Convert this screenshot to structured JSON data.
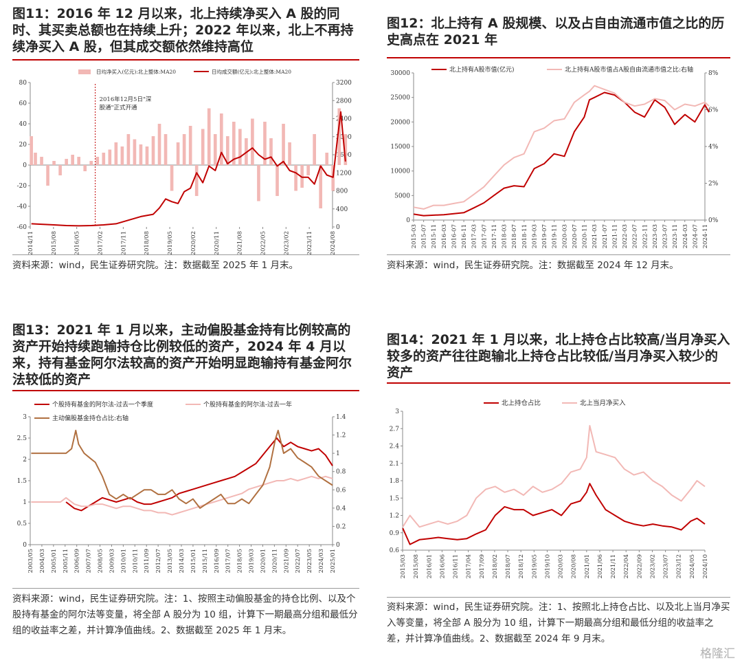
{
  "figures": [
    {
      "title": "图11：2016 年 12 月以来，北上持续净买入 A 股的同时、其买卖总额也在持续上升；2022 年以来，北上不再持续净买入 A 股，但其成交额依然维持高位",
      "source": "资料来源：wind，民生证券研究院。注：数据截至 2025 年 1 月末。"
    },
    {
      "title": "图12：北上持有 A 股规模、以及占自由流通市值之比的历史高点在 2021 年",
      "source": "资料来源：wind，民生证券研究院。注：数据截至 2024 年 12 月末。"
    },
    {
      "title": "图13：2021 年 1 月以来，主动偏股基金持有比例较高的资产开始持续跑输持仓比例较低的资产，2024 年 4 月以来，持有基金阿尔法较高的资产开始明显跑输持有基金阿尔法较低的资产",
      "source": "资料来源：wind，民生证券研究院。注：1、按照主动偏股基金的持仓比例、以及个股持有基金的阿尔法等变量，将全部 A 股分为 10 组，计算下一期最高分组和最低分组的收益率之差，并计算净值曲线。2、数据截至 2025 年 1 月末。"
    },
    {
      "title": "图14：2021 年 1 月以来，北上持仓占比较高/当月净买入较多的资产往往跑输北上持仓占比较低/当月净买入较少的资产",
      "source": "资料来源：wind，民生证券研究院。注：1、按照北上持仓占比、以及北上当月净买入等变量，将全部 A 股分为 10 组，计算下一期最高分组和最低分组的收益率之差，并计算净值曲线。2、数据截至 2024 年 9 月末。"
    }
  ],
  "watermark": "格隆汇",
  "chart_data": [
    {
      "type": "bar+line",
      "legend": [
        "日均净买入(亿元):北上整体:MA20",
        "日均成交额(亿元):北上整体:MA20"
      ],
      "annotation": "2016年12月5日\"深股通\"正式开通",
      "x_ticks": [
        "2014/11",
        "2015/08",
        "2016/05",
        "2017/02",
        "2017/11",
        "2018/08",
        "2019/05",
        "2020/02",
        "2020/11",
        "2021/08",
        "2022/05",
        "2023/02",
        "2023/11",
        "2024/08"
      ],
      "y_left": [
        80,
        60,
        40,
        20,
        0,
        -20,
        -40,
        -60
      ],
      "y_right": [
        3200,
        2800,
        2400,
        2000,
        1600,
        1200,
        800,
        400,
        0
      ],
      "ylim_left": [
        -60,
        80
      ],
      "ylim_right": [
        0,
        3200
      ],
      "series": [
        {
          "name": "日均净买入(亿元):北上整体:MA20",
          "axis": "left",
          "color": "#f2b8b5",
          "x": [
            2014.87,
            2015.0,
            2015.2,
            2015.4,
            2015.6,
            2015.8,
            2016.0,
            2016.2,
            2016.4,
            2016.6,
            2016.8,
            2017.0,
            2017.2,
            2017.4,
            2017.6,
            2017.8,
            2018.0,
            2018.2,
            2018.4,
            2018.6,
            2018.8,
            2019.0,
            2019.2,
            2019.4,
            2019.6,
            2019.8,
            2020.0,
            2020.2,
            2020.4,
            2020.6,
            2020.8,
            2021.0,
            2021.2,
            2021.4,
            2021.6,
            2021.8,
            2022.0,
            2022.2,
            2022.4,
            2022.6,
            2022.8,
            2023.0,
            2023.2,
            2023.4,
            2023.6,
            2023.8,
            2024.0,
            2024.2,
            2024.4,
            2024.6,
            2024.8,
            2025.0
          ],
          "y": [
            28,
            12,
            8,
            -20,
            4,
            -10,
            6,
            10,
            8,
            -6,
            4,
            8,
            12,
            15,
            22,
            18,
            30,
            25,
            20,
            18,
            28,
            40,
            30,
            -25,
            22,
            30,
            38,
            -30,
            35,
            55,
            30,
            50,
            28,
            42,
            35,
            26,
            45,
            -35,
            42,
            26,
            -30,
            40,
            22,
            -25,
            -22,
            -10,
            30,
            -42,
            12,
            -25,
            55,
            30
          ]
        },
        {
          "name": "日均成交额(亿元):北上整体:MA20",
          "axis": "right",
          "color": "#c00000",
          "x": [
            2014.87,
            2015.2,
            2015.6,
            2016.0,
            2016.4,
            2016.8,
            2017.2,
            2017.6,
            2018.0,
            2018.4,
            2018.8,
            2019.0,
            2019.2,
            2019.4,
            2019.6,
            2019.8,
            2020.0,
            2020.2,
            2020.4,
            2020.6,
            2020.8,
            2021.0,
            2021.2,
            2021.4,
            2021.6,
            2021.8,
            2022.0,
            2022.2,
            2022.4,
            2022.6,
            2022.8,
            2023.0,
            2023.2,
            2023.4,
            2023.6,
            2023.8,
            2024.0,
            2024.2,
            2024.4,
            2024.6,
            2024.75,
            2024.85,
            2025.0
          ],
          "y": [
            70,
            60,
            45,
            30,
            25,
            30,
            45,
            70,
            150,
            230,
            280,
            420,
            620,
            560,
            520,
            780,
            860,
            1200,
            980,
            1350,
            1250,
            1650,
            1400,
            1500,
            1550,
            1650,
            1750,
            1600,
            1500,
            1550,
            1350,
            1450,
            1250,
            1200,
            1100,
            1100,
            950,
            1350,
            1150,
            1100,
            2000,
            2550,
            1450
          ]
        }
      ]
    },
    {
      "type": "line",
      "legend": [
        "北上持有A股市值(亿元)",
        "北上持有A股市值占A股自由流通市值之比:右轴"
      ],
      "x_ticks": [
        "2015-03",
        "2015-07",
        "2015-11",
        "2016-03",
        "2016-07",
        "2016-11",
        "2017-03",
        "2017-07",
        "2017-11",
        "2018-03",
        "2018-07",
        "2018-11",
        "2019-03",
        "2019-07",
        "2019-11",
        "2020-03",
        "2020-07",
        "2020-11",
        "2021-03",
        "2021-07",
        "2021-11",
        "2022-03",
        "2022-07",
        "2022-11",
        "2023-03",
        "2023-07",
        "2023-11",
        "2024-03",
        "2024-07",
        "2024-11"
      ],
      "y_left": [
        30000,
        25000,
        20000,
        15000,
        10000,
        5000,
        0
      ],
      "y_right": [
        "8%",
        "6%",
        "4%",
        "2%",
        "0%"
      ],
      "ylim_left": [
        0,
        30000
      ],
      "ylim_right": [
        0,
        8
      ],
      "series": [
        {
          "name": "北上持有A股市值(亿元)",
          "axis": "left",
          "color": "#c00000",
          "x": [
            2015.17,
            2015.5,
            2015.83,
            2016.17,
            2016.5,
            2016.83,
            2017.17,
            2017.5,
            2017.83,
            2018.17,
            2018.5,
            2018.83,
            2019.17,
            2019.5,
            2019.83,
            2020.17,
            2020.5,
            2020.83,
            2021.0,
            2021.17,
            2021.5,
            2021.83,
            2022.17,
            2022.5,
            2022.83,
            2023.17,
            2023.5,
            2023.83,
            2024.17,
            2024.5,
            2024.83,
            2024.97
          ],
          "y": [
            1200,
            900,
            1000,
            1100,
            1300,
            1500,
            2500,
            3500,
            5000,
            6500,
            7000,
            6800,
            10500,
            11500,
            13500,
            13000,
            18000,
            21000,
            24500,
            25000,
            26000,
            25500,
            24000,
            22000,
            21000,
            24500,
            23000,
            19500,
            21500,
            20000,
            23500,
            22000
          ]
        },
        {
          "name": "北上持有A股市值占A股自由流通市值之比:右轴",
          "axis": "right",
          "color": "#f2b8b5",
          "x": [
            2015.17,
            2015.5,
            2015.83,
            2016.17,
            2016.5,
            2016.83,
            2017.17,
            2017.5,
            2017.83,
            2018.17,
            2018.5,
            2018.83,
            2019.17,
            2019.5,
            2019.83,
            2020.17,
            2020.5,
            2020.83,
            2021.0,
            2021.17,
            2021.5,
            2021.83,
            2022.17,
            2022.5,
            2022.83,
            2023.17,
            2023.5,
            2023.83,
            2024.17,
            2024.5,
            2024.83,
            2024.97
          ],
          "y": [
            0.7,
            0.6,
            0.8,
            0.8,
            0.9,
            1.0,
            1.4,
            1.8,
            2.4,
            3.0,
            3.4,
            3.6,
            4.8,
            5.0,
            5.4,
            5.5,
            6.4,
            6.8,
            7.0,
            7.3,
            7.1,
            6.9,
            6.4,
            6.2,
            6.3,
            6.6,
            6.5,
            6.0,
            6.3,
            6.2,
            6.4,
            6.2
          ]
        }
      ]
    },
    {
      "type": "line",
      "legend": [
        "个股持有基金的阿尔法-过去一个季度",
        "个股持有基金的阿尔法-过去一年",
        "主动偏股基金持仓占比:右轴"
      ],
      "x_ticks": [
        "2003/05",
        "2004/03",
        "2005/01",
        "2005/11",
        "2006/09",
        "2007/07",
        "2008/05",
        "2009/03",
        "2010/01",
        "2010/11",
        "2011/09",
        "2012/07",
        "2013/05",
        "2014/03",
        "2015/01",
        "2015/11",
        "2016/09",
        "2017/07",
        "2018/05",
        "2019/03",
        "2020/01",
        "2020/11",
        "2021/09",
        "2022/07",
        "2023/05",
        "2024/03",
        "2025/01"
      ],
      "y_left": [
        3,
        2.5,
        2,
        1.5,
        1,
        0.5,
        0
      ],
      "y_right": [
        1.4,
        1.2,
        1,
        0.8,
        0.6,
        0.4,
        0.2,
        0
      ],
      "ylim_left": [
        0,
        3
      ],
      "ylim_right": [
        0,
        1.4
      ],
      "series": [
        {
          "name": "个股持有基金的阿尔法-过去一个季度",
          "axis": "left",
          "color": "#c00000",
          "x": [
            2005.9,
            2006.5,
            2007.0,
            2007.5,
            2008.0,
            2008.5,
            2009.0,
            2009.5,
            2010.0,
            2010.5,
            2011.0,
            2011.5,
            2012.0,
            2012.5,
            2013.0,
            2013.5,
            2014.0,
            2014.5,
            2015.0,
            2015.5,
            2016.0,
            2016.5,
            2017.0,
            2017.5,
            2018.0,
            2018.5,
            2019.0,
            2019.5,
            2020.0,
            2020.5,
            2021.0,
            2021.5,
            2022.0,
            2022.5,
            2023.0,
            2023.5,
            2024.0,
            2024.5,
            2025.0
          ],
          "y": [
            1.0,
            0.85,
            0.8,
            0.9,
            1.0,
            1.1,
            1.05,
            1.0,
            1.05,
            1.1,
            1.0,
            0.95,
            0.95,
            1.0,
            1.05,
            1.1,
            1.2,
            1.25,
            1.3,
            1.35,
            1.4,
            1.45,
            1.5,
            1.55,
            1.6,
            1.7,
            1.8,
            1.9,
            2.1,
            2.3,
            2.5,
            2.3,
            2.4,
            2.3,
            2.25,
            2.2,
            2.25,
            2.1,
            1.85
          ]
        },
        {
          "name": "个股持有基金的阿尔法-过去一年",
          "axis": "left",
          "color": "#f2b8b5",
          "x": [
            2003.4,
            2004.5,
            2005.5,
            2005.9,
            2006.5,
            2007.0,
            2007.5,
            2008.0,
            2008.5,
            2009.0,
            2009.5,
            2010.0,
            2010.5,
            2011.0,
            2011.5,
            2012.0,
            2012.5,
            2013.0,
            2013.5,
            2014.0,
            2014.5,
            2015.0,
            2015.5,
            2016.0,
            2016.5,
            2017.0,
            2017.5,
            2018.0,
            2018.5,
            2019.0,
            2019.5,
            2020.0,
            2020.5,
            2021.0,
            2021.5,
            2022.0,
            2022.5,
            2023.0,
            2023.5,
            2024.0,
            2024.5,
            2025.0
          ],
          "y": [
            1.0,
            1.0,
            1.0,
            1.1,
            0.95,
            0.9,
            0.9,
            0.95,
            0.95,
            0.9,
            0.85,
            0.9,
            0.9,
            0.85,
            0.8,
            0.8,
            0.75,
            0.75,
            0.7,
            0.75,
            0.8,
            0.85,
            0.9,
            0.95,
            1.0,
            1.05,
            1.1,
            1.15,
            1.2,
            1.3,
            1.35,
            1.4,
            1.45,
            1.5,
            1.5,
            1.55,
            1.5,
            1.55,
            1.6,
            1.55,
            1.6,
            1.55
          ]
        },
        {
          "name": "主动偏股基金持仓占比:右轴",
          "axis": "right",
          "color": "#b07040",
          "x": [
            2003.4,
            2004.5,
            2005.5,
            2005.9,
            2006.3,
            2006.6,
            2006.8,
            2007.2,
            2007.6,
            2008.0,
            2008.5,
            2009.0,
            2009.5,
            2010.0,
            2010.5,
            2011.0,
            2011.5,
            2012.0,
            2012.5,
            2013.0,
            2013.5,
            2014.0,
            2014.5,
            2015.0,
            2015.5,
            2016.0,
            2016.5,
            2017.0,
            2017.5,
            2018.0,
            2018.5,
            2019.0,
            2019.5,
            2020.0,
            2020.5,
            2020.9,
            2021.1,
            2021.5,
            2022.0,
            2022.5,
            2023.0,
            2023.5,
            2024.0,
            2024.5,
            2025.0
          ],
          "y": [
            1.0,
            1.0,
            1.0,
            1.0,
            1.05,
            1.25,
            1.1,
            1.0,
            0.95,
            0.9,
            0.75,
            0.55,
            0.5,
            0.55,
            0.5,
            0.55,
            0.6,
            0.6,
            0.55,
            0.55,
            0.6,
            0.5,
            0.45,
            0.5,
            0.4,
            0.45,
            0.5,
            0.55,
            0.45,
            0.45,
            0.5,
            0.45,
            0.55,
            0.65,
            0.85,
            1.15,
            1.25,
            1.0,
            1.05,
            0.95,
            0.9,
            0.85,
            0.75,
            0.7,
            0.65
          ]
        }
      ]
    },
    {
      "type": "line",
      "legend": [
        "北上持仓占比",
        "北上当月净买入"
      ],
      "x_ticks": [
        "2015/03",
        "2015/08",
        "2016/01",
        "2016/06",
        "2016/11",
        "2017/04",
        "2017/09",
        "2018/02",
        "2018/07",
        "2018/12",
        "2019/05",
        "2019/10",
        "2020/03",
        "2020/08",
        "2021/01",
        "2021/06",
        "2021/11",
        "2022/04",
        "2022/09",
        "2023/02",
        "2023/07",
        "2023/12",
        "2024/05",
        "2024/10"
      ],
      "y_left": [
        3,
        2.7,
        2.4,
        2.1,
        1.8,
        1.5,
        1.2,
        0.9,
        0.6
      ],
      "ylim_left": [
        0.6,
        3
      ],
      "series": [
        {
          "name": "北上持仓占比",
          "axis": "left",
          "color": "#c00000",
          "x": [
            2015.17,
            2015.4,
            2015.7,
            2016.0,
            2016.3,
            2016.6,
            2016.9,
            2017.2,
            2017.5,
            2017.8,
            2018.1,
            2018.4,
            2018.7,
            2019.0,
            2019.3,
            2019.6,
            2019.9,
            2020.2,
            2020.5,
            2020.8,
            2021.0,
            2021.1,
            2021.3,
            2021.6,
            2021.9,
            2022.2,
            2022.5,
            2022.8,
            2023.1,
            2023.4,
            2023.7,
            2024.0,
            2024.3,
            2024.5,
            2024.75
          ],
          "y": [
            0.98,
            0.7,
            0.78,
            0.8,
            0.82,
            0.8,
            0.78,
            0.8,
            0.88,
            0.95,
            1.2,
            1.35,
            1.3,
            1.3,
            1.2,
            1.25,
            1.3,
            1.2,
            1.4,
            1.45,
            1.6,
            1.75,
            1.55,
            1.3,
            1.2,
            1.1,
            1.05,
            1.02,
            1.05,
            1.02,
            1.0,
            0.95,
            1.1,
            1.15,
            1.05
          ]
        },
        {
          "name": "北上当月净买入",
          "axis": "left",
          "color": "#f2b8b5",
          "x": [
            2015.17,
            2015.4,
            2015.7,
            2016.0,
            2016.3,
            2016.6,
            2016.9,
            2017.2,
            2017.5,
            2017.8,
            2018.1,
            2018.4,
            2018.7,
            2019.0,
            2019.3,
            2019.6,
            2019.9,
            2020.2,
            2020.5,
            2020.8,
            2021.0,
            2021.1,
            2021.3,
            2021.6,
            2021.9,
            2022.2,
            2022.5,
            2022.8,
            2023.1,
            2023.4,
            2023.7,
            2024.0,
            2024.3,
            2024.5,
            2024.75
          ],
          "y": [
            1.0,
            1.2,
            1.0,
            1.05,
            1.1,
            1.05,
            1.1,
            1.2,
            1.5,
            1.65,
            1.7,
            1.6,
            1.65,
            1.55,
            1.7,
            1.6,
            1.65,
            1.75,
            1.95,
            2.0,
            2.2,
            2.75,
            2.3,
            2.25,
            2.2,
            2.0,
            1.9,
            1.95,
            1.8,
            1.7,
            1.55,
            1.45,
            1.65,
            1.8,
            1.7
          ]
        }
      ]
    }
  ]
}
